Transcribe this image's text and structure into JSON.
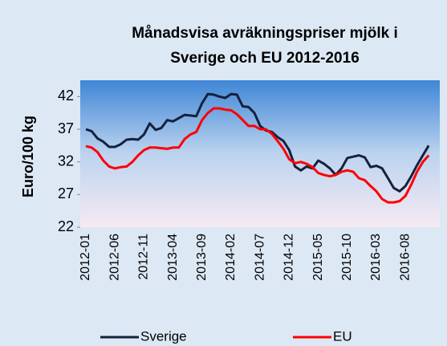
{
  "chart_data": {
    "type": "line",
    "title": [
      "Månadsvisa avräkningspriser mjölk i",
      "Sverige och EU 2012-2016"
    ],
    "y_label": "Euro/100 kg",
    "categories": [
      "2012-01",
      null,
      null,
      null,
      null,
      "2012-06",
      null,
      null,
      null,
      null,
      "2012-11",
      null,
      null,
      null,
      null,
      "2013-04",
      null,
      null,
      null,
      null,
      "2013-09",
      null,
      null,
      null,
      null,
      "2014-02",
      null,
      null,
      null,
      null,
      "2014-07",
      null,
      null,
      null,
      null,
      "2014-12",
      null,
      null,
      null,
      null,
      "2015-05",
      null,
      null,
      null,
      null,
      "2015-10",
      null,
      null,
      null,
      null,
      "2016-03",
      null,
      null,
      null,
      null,
      "2016-08",
      null,
      null,
      null,
      null
    ],
    "series": [
      {
        "name": "Sverige",
        "color": "#14213d",
        "values": [
          37,
          36.7,
          35.6,
          35.1,
          34.3,
          34.3,
          34.7,
          35.4,
          35.5,
          35.4,
          36.2,
          37.9,
          36.9,
          37.2,
          38.4,
          38.2,
          38.7,
          39.2,
          39.1,
          39.0,
          41.0,
          42.4,
          42.3,
          42.0,
          41.8,
          42.4,
          42.3,
          40.5,
          40.4,
          39.5,
          37.5,
          36.8,
          36.6,
          35.8,
          35.2,
          33.8,
          31.3,
          30.7,
          31.3,
          31.0,
          32.2,
          31.7,
          31.0,
          30.0,
          31.0,
          32.6,
          32.8,
          33.0,
          32.7,
          31.2,
          31.4,
          31.0,
          29.5,
          28.0,
          27.5,
          28.3,
          29.8,
          31.5,
          33.0,
          34.5
        ]
      },
      {
        "name": "EU",
        "color": "#ff0000",
        "values": [
          34.4,
          34.2,
          33.5,
          32.2,
          31.3,
          31.0,
          31.2,
          31.3,
          32.0,
          33.0,
          33.8,
          34.2,
          34.2,
          34.1,
          34.0,
          34.2,
          34.2,
          35.5,
          36.2,
          36.6,
          38.4,
          39.5,
          40.2,
          40.2,
          40.0,
          39.9,
          39.3,
          38.4,
          37.5,
          37.5,
          37.0,
          37.0,
          36.3,
          35.2,
          34.0,
          32.4,
          31.8,
          32.0,
          31.7,
          31.2,
          30.3,
          30.0,
          29.8,
          30.0,
          30.5,
          30.7,
          30.5,
          29.5,
          29.2,
          28.3,
          27.5,
          26.3,
          25.8,
          25.8,
          26.0,
          26.8,
          28.5,
          30.5,
          32.0,
          33.0
        ]
      }
    ],
    "ylim": [
      22,
      44.5
    ],
    "yticks": [
      22,
      27,
      32,
      37,
      42
    ],
    "grid": false,
    "legend": "bottom"
  }
}
